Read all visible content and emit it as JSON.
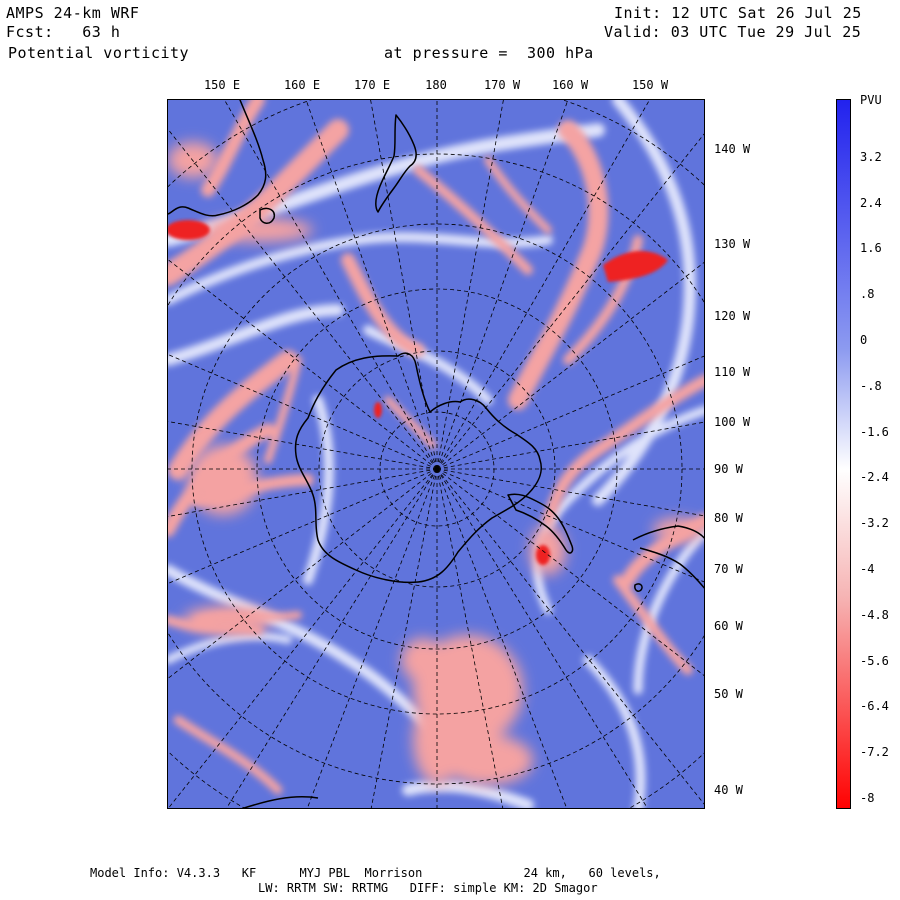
{
  "header": {
    "model": "AMPS 24-km WRF",
    "fcst": "Fcst:   63 h",
    "field": "Potential vorticity",
    "init": "Init: 12 UTC Sat 26 Jul 25",
    "valid": "Valid: 03 UTC Tue 29 Jul 25",
    "pressure": "at pressure =  300 hPa"
  },
  "longitude_labels_top": [
    "150 E",
    "160 E",
    "170 E",
    "180",
    "170 W",
    "160 W",
    "150 W"
  ],
  "longitude_labels_right": [
    "140 W",
    "130 W",
    "120 W",
    "110 W",
    "100 W",
    "90 W",
    "80 W",
    "70 W",
    "60 W",
    "50 W",
    "40 W"
  ],
  "colorbar": {
    "unit": "PVU",
    "ticks": [
      "3.2",
      "2.4",
      "1.6",
      ".8",
      "0",
      "-.8",
      "-1.6",
      "-2.4",
      "-3.2",
      "-4",
      "-4.8",
      "-5.6",
      "-6.4",
      "-7.2",
      "-8"
    ],
    "color_top": "#2b2bf0",
    "color_bottom": "#ff0000"
  },
  "colors": {
    "positive_background": "#5f72dc",
    "negative_anomaly": "#f2a0a0",
    "strong_negative": "#ee2222",
    "coastline": "#000000"
  },
  "footer": {
    "line1": "Model Info: V4.3.3   KF      MYJ PBL  Morrison              24 km,   60 levels,",
    "line2": "LW: RRTM SW: RRTMG   DIFF: simple KM: 2D Smagor"
  }
}
